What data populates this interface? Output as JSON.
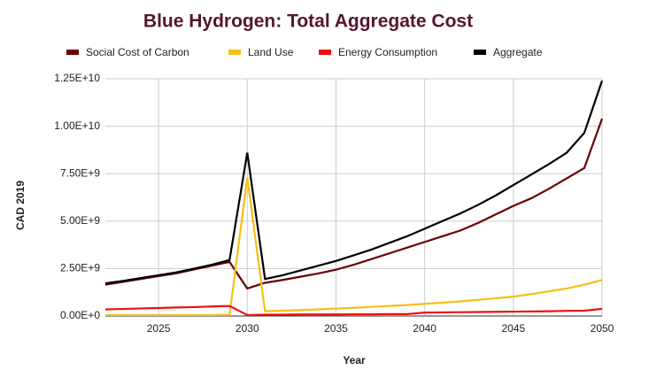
{
  "chart_data": {
    "type": "line",
    "title": "Blue Hydrogen: Total Aggregate Cost",
    "x_label": "Year",
    "y_label": "CAD 2019",
    "x": [
      2022,
      2023,
      2024,
      2025,
      2026,
      2027,
      2028,
      2029,
      2030,
      2031,
      2032,
      2033,
      2034,
      2035,
      2036,
      2037,
      2038,
      2039,
      2040,
      2041,
      2042,
      2043,
      2044,
      2045,
      2046,
      2047,
      2048,
      2049,
      2050
    ],
    "series": [
      {
        "name": "Social Cost of Carbon",
        "color": "#6b0000",
        "values": [
          1650000000.0,
          1800000000.0,
          1950000000.0,
          2100000000.0,
          2250000000.0,
          2450000000.0,
          2650000000.0,
          2850000000.0,
          1450000000.0,
          1750000000.0,
          1900000000.0,
          2070000000.0,
          2240000000.0,
          2440000000.0,
          2700000000.0,
          3000000000.0,
          3300000000.0,
          3600000000.0,
          3900000000.0,
          4200000000.0,
          4500000000.0,
          4900000000.0,
          5350000000.0,
          5800000000.0,
          6200000000.0,
          6700000000.0,
          7250000000.0,
          7800000000.0,
          10400000000.0
        ]
      },
      {
        "name": "Land Use",
        "color": "#f6bf16",
        "values": [
          50000000.0,
          50000000.0,
          50000000.0,
          50000000.0,
          50000000.0,
          50000000.0,
          50000000.0,
          60000000.0,
          7300000000.0,
          250000000.0,
          280000000.0,
          310000000.0,
          350000000.0,
          390000000.0,
          430000000.0,
          480000000.0,
          530000000.0,
          580000000.0,
          640000000.0,
          700000000.0,
          770000000.0,
          850000000.0,
          930000000.0,
          1020000000.0,
          1150000000.0,
          1300000000.0,
          1450000000.0,
          1650000000.0,
          1900000000.0
        ]
      },
      {
        "name": "Energy Consumption",
        "color": "#ee1111",
        "values": [
          350000000.0,
          370000000.0,
          400000000.0,
          420000000.0,
          450000000.0,
          470000000.0,
          500000000.0,
          530000000.0,
          50000000.0,
          70000000.0,
          70000000.0,
          80000000.0,
          80000000.0,
          80000000.0,
          90000000.0,
          90000000.0,
          100000000.0,
          100000000.0,
          180000000.0,
          190000000.0,
          200000000.0,
          210000000.0,
          220000000.0,
          230000000.0,
          240000000.0,
          250000000.0,
          270000000.0,
          280000000.0,
          380000000.0
        ]
      },
      {
        "name": "Aggregate",
        "color": "#000000",
        "values": [
          1720000000.0,
          1850000000.0,
          2000000000.0,
          2150000000.0,
          2300000000.0,
          2500000000.0,
          2700000000.0,
          2950000000.0,
          8600000000.0,
          1950000000.0,
          2150000000.0,
          2400000000.0,
          2650000000.0,
          2900000000.0,
          3200000000.0,
          3500000000.0,
          3850000000.0,
          4200000000.0,
          4600000000.0,
          5000000000.0,
          5400000000.0,
          5850000000.0,
          6350000000.0,
          6900000000.0,
          7450000000.0,
          8000000000.0,
          8600000000.0,
          9650000000.0,
          12400000000.0
        ]
      }
    ],
    "xlim": [
      2022,
      2050
    ],
    "xticks": [
      2025,
      2030,
      2035,
      2040,
      2045,
      2050
    ],
    "ylim": [
      0,
      12500000000.0
    ],
    "yticks": [
      {
        "value": 0,
        "label": "0.00E+0"
      },
      {
        "value": 2500000000.0,
        "label": "2.50E+9"
      },
      {
        "value": 5000000000.0,
        "label": "5.00E+9"
      },
      {
        "value": 7500000000.0,
        "label": "7.50E+9"
      },
      {
        "value": 10000000000.0,
        "label": "1.00E+10"
      },
      {
        "value": 12500000000.0,
        "label": "1.25E+10"
      }
    ],
    "grid": true,
    "legend": "top"
  }
}
